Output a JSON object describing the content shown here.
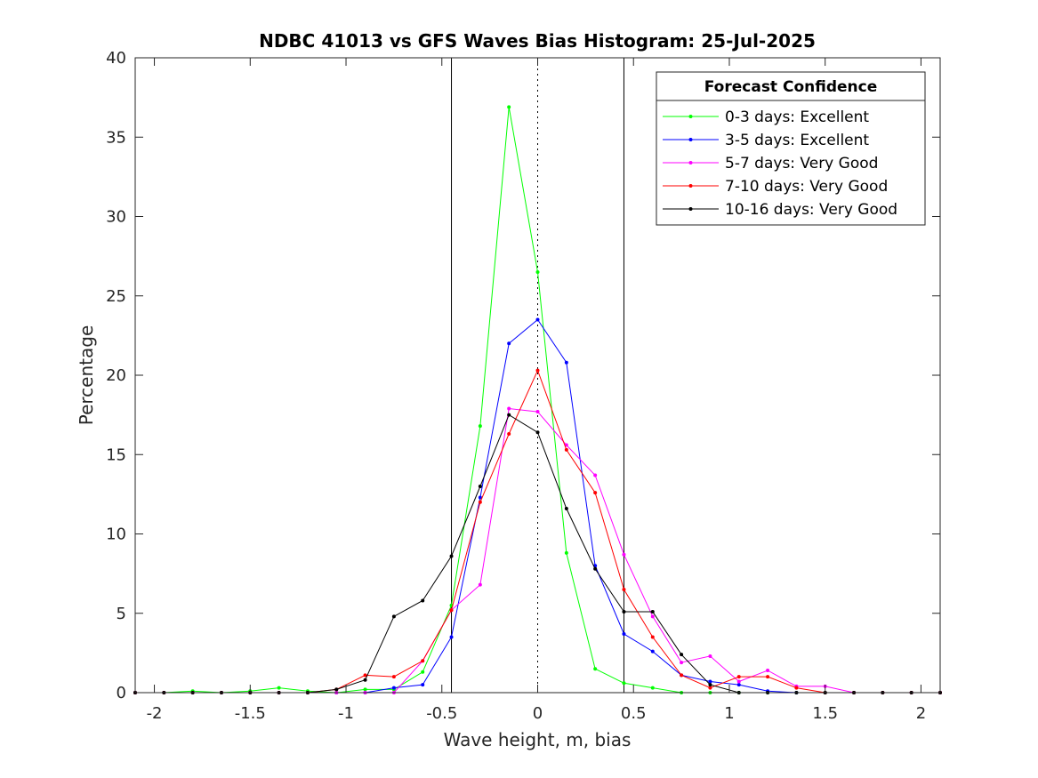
{
  "chart_data": {
    "type": "line",
    "title": "NDBC 41013 vs GFS Waves Bias Histogram: 25-Jul-2025",
    "xlabel": "Wave height, m, bias",
    "ylabel": "Percentage",
    "xlim": [
      -2.1,
      2.1
    ],
    "ylim": [
      0,
      40
    ],
    "xticks": [
      -2,
      -1.5,
      -1,
      -0.5,
      0,
      0.5,
      1,
      1.5,
      2
    ],
    "xtick_labels": [
      "-2",
      "-1.5",
      "-1",
      "-0.5",
      "0",
      "0.5",
      "1",
      "1.5",
      "2"
    ],
    "yticks": [
      0,
      5,
      10,
      15,
      20,
      25,
      30,
      35,
      40
    ],
    "ytick_labels": [
      "0",
      "5",
      "10",
      "15",
      "20",
      "25",
      "30",
      "35",
      "40"
    ],
    "grid": false,
    "vertical_lines": [
      {
        "x": -0.45,
        "style": "solid"
      },
      {
        "x": 0,
        "style": "dotted"
      },
      {
        "x": 0.45,
        "style": "solid"
      }
    ],
    "legend": {
      "title": "Forecast Confidence",
      "placement": "top-right"
    },
    "x": [
      -2.1,
      -1.95,
      -1.8,
      -1.65,
      -1.5,
      -1.35,
      -1.2,
      -1.05,
      -0.9,
      -0.75,
      -0.6,
      -0.45,
      -0.3,
      -0.15,
      0,
      0.15,
      0.3,
      0.45,
      0.6,
      0.75,
      0.9,
      1.05,
      1.2,
      1.35,
      1.5,
      1.65,
      1.8,
      1.95,
      2.1
    ],
    "series": [
      {
        "name": "0-3 days: Excellent",
        "color": "#00ff00",
        "values": [
          0,
          0,
          0.1,
          0,
          0.1,
          0.3,
          0.1,
          0,
          0.2,
          0.2,
          1.3,
          5.5,
          16.8,
          36.9,
          26.5,
          8.8,
          1.5,
          0.6,
          0.3,
          0,
          0,
          0,
          0,
          0,
          0,
          0,
          0,
          0,
          0
        ]
      },
      {
        "name": "3-5 days: Excellent",
        "color": "#0000ff",
        "values": [
          0,
          0,
          0,
          0,
          0,
          0,
          0,
          0,
          0,
          0.3,
          0.5,
          3.5,
          12.3,
          22,
          23.5,
          20.8,
          8,
          3.7,
          2.6,
          1.1,
          0.7,
          0.5,
          0.1,
          0,
          0,
          0,
          0,
          0,
          0
        ]
      },
      {
        "name": "5-7 days: Very Good",
        "color": "#ff00ff",
        "values": [
          0,
          0,
          0,
          0,
          0,
          0,
          0,
          0,
          0,
          0,
          2,
          5.2,
          6.8,
          17.9,
          17.7,
          15.6,
          13.7,
          8.7,
          4.8,
          1.9,
          2.3,
          0.7,
          1.4,
          0.4,
          0.4,
          0,
          0,
          0,
          0
        ]
      },
      {
        "name": "7-10 days: Very Good",
        "color": "#ff0000",
        "values": [
          0,
          0,
          0,
          0,
          0,
          0,
          0,
          0.2,
          1.1,
          1,
          2,
          5.2,
          12,
          16.3,
          20.3,
          15.3,
          12.6,
          6.5,
          3.5,
          1.1,
          0.3,
          1,
          1,
          0.3,
          0,
          0,
          0,
          0,
          0
        ]
      },
      {
        "name": "10-16 days: Very Good",
        "color": "#000000",
        "values": [
          0,
          0,
          0,
          0,
          0,
          0,
          0,
          0.2,
          0.8,
          4.8,
          5.8,
          8.6,
          13,
          17.5,
          16.4,
          11.6,
          7.8,
          5.1,
          5.1,
          2.4,
          0.5,
          0,
          0,
          0,
          0,
          0,
          0,
          0,
          0
        ]
      }
    ]
  }
}
